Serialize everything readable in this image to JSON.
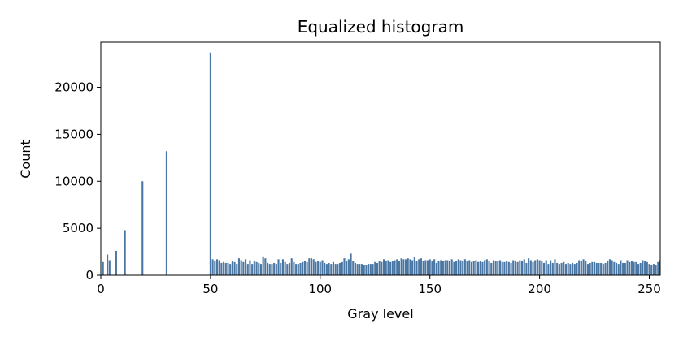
{
  "chart_data": {
    "type": "bar",
    "title": "Equalized histogram",
    "xlabel": "Gray level",
    "ylabel": "Count",
    "xlim": [
      0,
      255
    ],
    "ylim": [
      0,
      24800
    ],
    "xticks": [
      0,
      50,
      100,
      150,
      200,
      250
    ],
    "yticks": [
      0,
      5000,
      10000,
      15000,
      20000
    ],
    "bar_color": "#4a76a3",
    "grid": false,
    "bars": [
      {
        "x": 1,
        "y": 1400
      },
      {
        "x": 3,
        "y": 2200
      },
      {
        "x": 4,
        "y": 1600
      },
      {
        "x": 7,
        "y": 2600
      },
      {
        "x": 11,
        "y": 4800
      },
      {
        "x": 19,
        "y": 10000
      },
      {
        "x": 30,
        "y": 13200
      },
      {
        "x": 50,
        "y": 23700
      }
    ],
    "tail_x_start": 51,
    "tail_values": [
      1700,
      1500,
      1700,
      1600,
      1300,
      1400,
      1300,
      1300,
      1200,
      1500,
      1400,
      1200,
      1800,
      1600,
      1400,
      1700,
      1200,
      1600,
      1200,
      1500,
      1400,
      1300,
      1200,
      2000,
      1800,
      1300,
      1200,
      1200,
      1300,
      1200,
      1700,
      1300,
      1700,
      1400,
      1200,
      1300,
      1800,
      1400,
      1200,
      1200,
      1300,
      1400,
      1500,
      1400,
      1800,
      1800,
      1700,
      1400,
      1500,
      1400,
      1600,
      1300,
      1200,
      1300,
      1200,
      1400,
      1200,
      1200,
      1300,
      1400,
      1800,
      1500,
      1700,
      2300,
      1500,
      1300,
      1200,
      1200,
      1200,
      1100,
      1100,
      1200,
      1200,
      1200,
      1400,
      1300,
      1500,
      1400,
      1700,
      1500,
      1600,
      1400,
      1500,
      1600,
      1700,
      1500,
      1800,
      1700,
      1700,
      1800,
      1700,
      1600,
      1900,
      1500,
      1700,
      1800,
      1500,
      1600,
      1600,
      1700,
      1500,
      1700,
      1300,
      1500,
      1600,
      1500,
      1600,
      1600,
      1500,
      1700,
      1400,
      1500,
      1700,
      1600,
      1500,
      1700,
      1500,
      1600,
      1400,
      1500,
      1600,
      1400,
      1500,
      1400,
      1600,
      1700,
      1500,
      1300,
      1600,
      1500,
      1500,
      1600,
      1400,
      1400,
      1500,
      1400,
      1300,
      1600,
      1500,
      1400,
      1600,
      1500,
      1700,
      1300,
      1800,
      1600,
      1400,
      1600,
      1700,
      1600,
      1500,
      1300,
      1600,
      1200,
      1600,
      1300,
      1700,
      1300,
      1200,
      1300,
      1400,
      1200,
      1300,
      1200,
      1300,
      1200,
      1300,
      1600,
      1500,
      1700,
      1500,
      1200,
      1300,
      1400,
      1400,
      1300,
      1300,
      1300,
      1200,
      1300,
      1500,
      1700,
      1600,
      1400,
      1300,
      1200,
      1600,
      1300,
      1300,
      1600,
      1400,
      1500,
      1400,
      1400,
      1200,
      1300,
      1600,
      1500,
      1400,
      1200,
      1100,
      1200,
      1100,
      1400,
      1600,
      1300,
      1400,
      1500,
      1300,
      1600,
      1200,
      1400,
      1300,
      1500,
      1600,
      1700,
      1500,
      1700,
      1600,
      1500
    ]
  }
}
